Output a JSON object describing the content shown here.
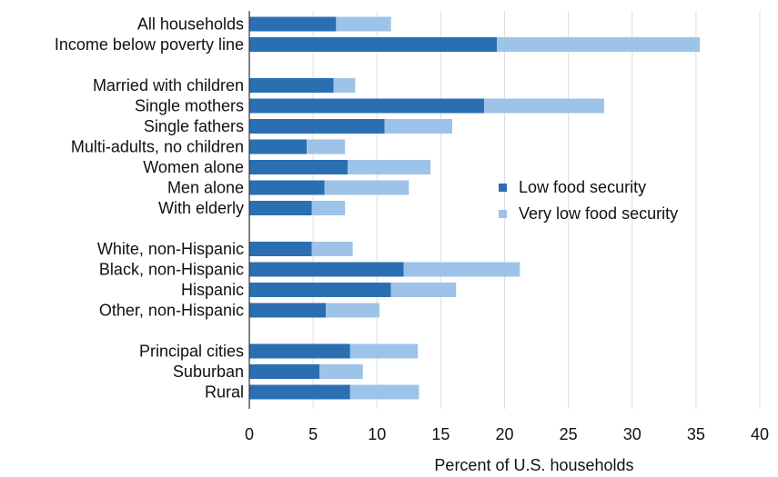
{
  "chart_data": {
    "type": "bar",
    "orientation": "horizontal",
    "stacked": true,
    "groups": [
      [
        "All households",
        "Income below poverty line"
      ],
      [
        "Married with children",
        "Single mothers",
        "Single fathers",
        "Multi-adults, no children",
        "Women alone",
        "Men alone",
        "With elderly"
      ],
      [
        "White, non-Hispanic",
        "Black, non-Hispanic",
        "Hispanic",
        "Other, non-Hispanic"
      ],
      [
        "Principal cities",
        "Suburban",
        "Rural"
      ]
    ],
    "categories": [
      "All households",
      "Income below poverty line",
      "Married with children",
      "Single mothers",
      "Single fathers",
      "Multi-adults, no children",
      "Women alone",
      "Men alone",
      "With elderly",
      "White, non-Hispanic",
      "Black, non-Hispanic",
      "Hispanic",
      "Other, non-Hispanic",
      "Principal cities",
      "Suburban",
      "Rural"
    ],
    "series": [
      {
        "name": "Low food security",
        "color": "#2b6fb3",
        "values": [
          6.8,
          19.4,
          6.6,
          18.4,
          10.6,
          4.5,
          7.7,
          5.9,
          4.9,
          4.9,
          12.1,
          11.1,
          6.0,
          7.9,
          5.5,
          7.9
        ]
      },
      {
        "name": "Very low food security",
        "color": "#9ec3e8",
        "values": [
          4.3,
          15.9,
          1.7,
          9.4,
          5.3,
          3.0,
          6.5,
          6.6,
          2.6,
          3.2,
          9.1,
          5.1,
          4.2,
          5.3,
          3.4,
          5.4
        ]
      }
    ],
    "xlim": [
      0,
      40
    ],
    "xticks": [
      0,
      5,
      10,
      15,
      20,
      25,
      30,
      35,
      40
    ],
    "xlabel": "Percent of U.S. households",
    "grid": "vertical",
    "legend": "right"
  }
}
